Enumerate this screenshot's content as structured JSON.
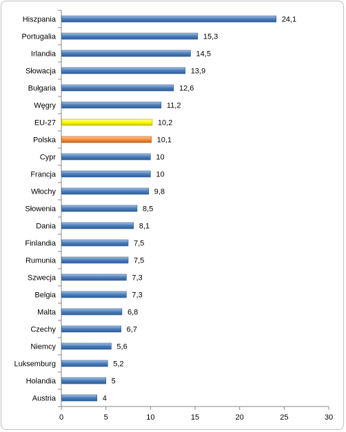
{
  "chart_data": {
    "type": "bar",
    "orientation": "horizontal",
    "categories": [
      "Hiszpania",
      "Portugalia",
      "Irlandia",
      "Słowacja",
      "Bułgaria",
      "Węgry",
      "EU-27",
      "Polska",
      "Cypr",
      "Francja",
      "Włochy",
      "Słowenia",
      "Dania",
      "Finlandia",
      "Rumunia",
      "Szwecja",
      "Belgia",
      "Malta",
      "Czechy",
      "Niemcy",
      "Luksemburg",
      "Holandia",
      "Austria"
    ],
    "values": [
      24.1,
      15.3,
      14.5,
      13.9,
      12.6,
      11.2,
      10.2,
      10.1,
      10,
      10,
      9.8,
      8.5,
      8.1,
      7.5,
      7.5,
      7.3,
      7.3,
      6.8,
      6.7,
      5.6,
      5.2,
      5,
      4
    ],
    "value_labels": [
      "24,1",
      "15,3",
      "14,5",
      "13,9",
      "12,6",
      "11,2",
      "10,2",
      "10,1",
      "10",
      "10",
      "9,8",
      "8,5",
      "8,1",
      "7,5",
      "7,5",
      "7,3",
      "7,3",
      "6,8",
      "6,7",
      "5,6",
      "5,2",
      "5",
      "4"
    ],
    "xlim": [
      0,
      30
    ],
    "xticks": [
      0,
      5,
      10,
      15,
      20,
      25,
      30
    ],
    "xtick_labels": [
      "0",
      "5",
      "10",
      "15",
      "20",
      "25",
      "30"
    ],
    "title": "",
    "xlabel": "",
    "ylabel": "",
    "grid": false,
    "legend": "none",
    "colors": {
      "default_bar": "#4f81bd",
      "highlight_eu": "#ffff00",
      "highlight_poland": "#f79646"
    },
    "highlights": {
      "EU-27": "highlight_eu",
      "Polska": "highlight_poland"
    }
  }
}
